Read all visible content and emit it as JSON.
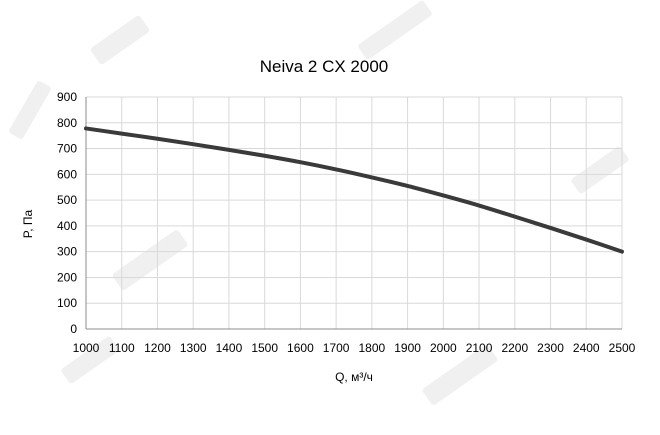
{
  "chart_data": {
    "type": "line",
    "title": "Neiva 2 CX 2000",
    "xlabel": "Q, м³/ч",
    "ylabel": "P, Па",
    "xlim": [
      1000,
      2500
    ],
    "ylim": [
      0,
      900
    ],
    "x_ticks": [
      1000,
      1100,
      1200,
      1300,
      1400,
      1500,
      1600,
      1700,
      1800,
      1900,
      2000,
      2100,
      2200,
      2300,
      2400,
      2500
    ],
    "y_ticks": [
      0,
      100,
      200,
      300,
      400,
      500,
      600,
      700,
      800,
      900
    ],
    "grid": true,
    "legend": "none",
    "series": [
      {
        "color": "#3a3a3a",
        "x": [
          1000,
          1100,
          1200,
          1300,
          1400,
          1500,
          1600,
          1700,
          1800,
          1900,
          2000,
          2100,
          2200,
          2300,
          2400,
          2500
        ],
        "y": [
          778,
          758,
          738,
          717,
          695,
          672,
          647,
          619,
          588,
          555,
          518,
          479,
          436,
          392,
          347,
          300
        ]
      }
    ]
  },
  "colors": {
    "grid": "#d9d9d9",
    "axis": "#8c8c8c",
    "line": "#3a3a3a",
    "text": "#000000"
  }
}
